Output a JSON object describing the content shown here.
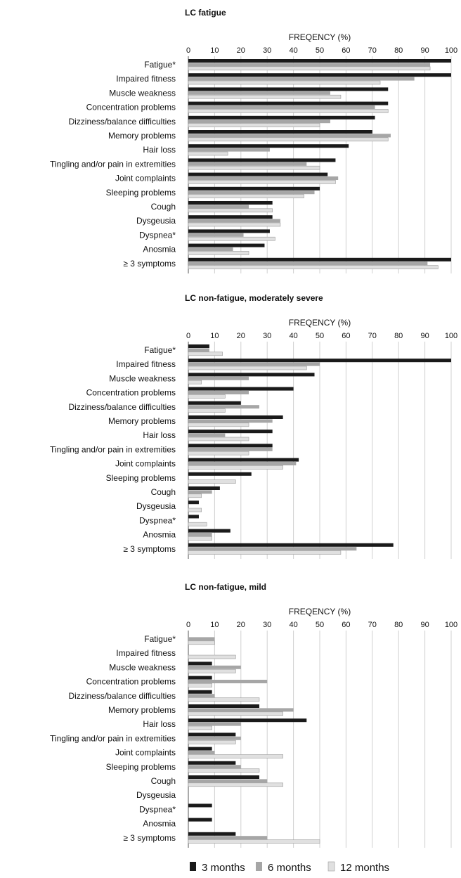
{
  "chart_data": [
    {
      "type": "bar",
      "orientation": "horizontal",
      "title": "LC fatigue",
      "xlabel": "FREQENCY (%)",
      "xlim": [
        0,
        100
      ],
      "ticks": [
        "0",
        "10",
        "20",
        "30",
        "40",
        "50",
        "60",
        "70",
        "80",
        "90",
        "100"
      ],
      "categories": [
        "Fatigue*",
        "Impaired fitness",
        "Muscle weakness",
        "Concentration problems",
        "Dizziness/balance difficulties",
        "Memory problems",
        "Hair loss",
        "Tingling and/or pain in extremities",
        "Joint complaints",
        "Sleeping problems",
        "Cough",
        "Dysgeusia",
        "Dyspnea*",
        "Anosmia",
        "≥ 3 symptoms"
      ],
      "series": [
        {
          "name": "3 months",
          "values": [
            100,
            100,
            76,
            76,
            71,
            70,
            61,
            56,
            53,
            50,
            32,
            32,
            31,
            29,
            100
          ]
        },
        {
          "name": "6 months",
          "values": [
            92,
            86,
            54,
            71,
            54,
            77,
            31,
            45,
            57,
            48,
            23,
            35,
            21,
            17,
            91
          ]
        },
        {
          "name": "12 months",
          "values": [
            92,
            73,
            58,
            76,
            50,
            76,
            15,
            50,
            56,
            44,
            32,
            35,
            33,
            23,
            95
          ]
        }
      ]
    },
    {
      "type": "bar",
      "orientation": "horizontal",
      "title": "LC non-fatigue, moderately severe",
      "xlabel": "FREQENCY (%)",
      "xlim": [
        0,
        100
      ],
      "ticks": [
        "0",
        "10",
        "20",
        "30",
        "40",
        "50",
        "60",
        "70",
        "80",
        "90",
        "100"
      ],
      "categories": [
        "Fatigue*",
        "Impaired fitness",
        "Muscle weakness",
        "Concentration problems",
        "Dizziness/balance difficulties",
        "Memory problems",
        "Hair loss",
        "Tingling and/or pain in extremities",
        "Joint complaints",
        "Sleeping problems",
        "Cough",
        "Dysgeusia",
        "Dyspnea*",
        "Anosmia",
        "≥ 3 symptoms"
      ],
      "series": [
        {
          "name": "3 months",
          "values": [
            8,
            100,
            48,
            40,
            20,
            36,
            32,
            32,
            42,
            24,
            12,
            4,
            4,
            16,
            78
          ]
        },
        {
          "name": "6 months",
          "values": [
            8,
            50,
            23,
            23,
            27,
            32,
            14,
            32,
            41,
            0,
            9,
            0,
            0,
            9,
            64
          ]
        },
        {
          "name": "12 months",
          "values": [
            13,
            45,
            5,
            14,
            14,
            23,
            23,
            23,
            36,
            18,
            5,
            5,
            7,
            9,
            58
          ]
        }
      ]
    },
    {
      "type": "bar",
      "orientation": "horizontal",
      "title": "LC non-fatigue, mild",
      "xlabel": "FREQENCY (%)",
      "xlim": [
        0,
        100
      ],
      "ticks": [
        "0",
        "10",
        "20",
        "30",
        "40",
        "50",
        "60",
        "70",
        "80",
        "90",
        "100"
      ],
      "categories": [
        "Fatigue*",
        "Impaired fitness",
        "Muscle weakness",
        "Concentration problems",
        "Dizziness/balance difficulties",
        "Memory problems",
        "Hair loss",
        "Tingling and/or pain in extremities",
        "Joint complaints",
        "Sleeping problems",
        "Cough",
        "Dysgeusia",
        "Dyspnea*",
        "Anosmia",
        "≥ 3 symptoms"
      ],
      "series": [
        {
          "name": "3 months",
          "values": [
            0,
            0,
            9,
            9,
            9,
            27,
            45,
            18,
            9,
            18,
            27,
            0,
            9,
            9,
            18
          ]
        },
        {
          "name": "6 months",
          "values": [
            10,
            0,
            20,
            30,
            10,
            40,
            20,
            20,
            10,
            20,
            30,
            0,
            0,
            0,
            30
          ]
        },
        {
          "name": "12 months",
          "values": [
            10,
            18,
            18,
            9,
            27,
            36,
            9,
            18,
            36,
            27,
            36,
            0,
            0,
            0,
            50
          ]
        }
      ]
    }
  ],
  "colors": {
    "3 months": "#1a1a1a",
    "6 months": "#a6a6a6",
    "12 months": "#e0e0e0",
    "grid": "#d0d0d0"
  },
  "legend": {
    "position": "bottom",
    "items": [
      "3 months",
      "6 months",
      "12 months"
    ]
  }
}
